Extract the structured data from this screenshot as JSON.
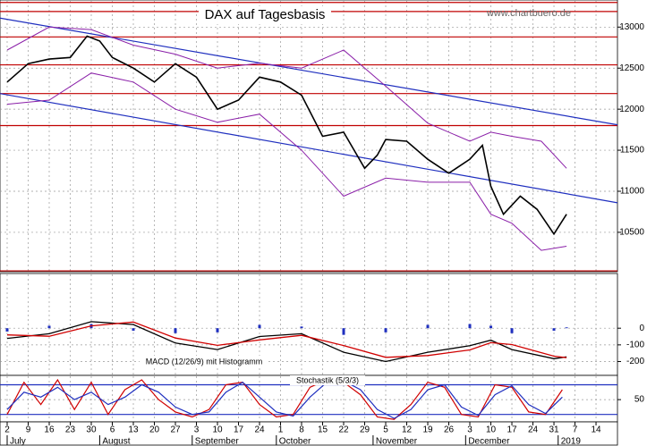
{
  "chart_data": [
    {
      "type": "line",
      "title": "DAX auf Tagesbasis",
      "source": "www.chartbuero.de",
      "ylim": [
        10020,
        13330
      ],
      "yticks": [
        10500,
        11000,
        11500,
        12000,
        12500,
        13000
      ],
      "xlim": [
        -1.7,
        145.1
      ],
      "grid": true,
      "hlines": [
        {
          "value": 13300,
          "color": "#c00000"
        },
        {
          "value": 13190,
          "color": "#c00000"
        },
        {
          "value": 12880,
          "color": "#c00000"
        },
        {
          "value": 12540,
          "color": "#c00000"
        },
        {
          "value": 12190,
          "color": "#c00000"
        },
        {
          "value": 11800,
          "color": "#c00000"
        },
        {
          "value": 10030,
          "color": "#c00000"
        }
      ],
      "trendlines": [
        {
          "color": "#1f2fbf",
          "x": [
            -1.7,
            145.1
          ],
          "values": [
            13110,
            11810
          ]
        },
        {
          "color": "#1f2fbf",
          "x": [
            -1.7,
            145.1
          ],
          "values": [
            12190,
            10860
          ]
        }
      ],
      "series": [
        {
          "color": "#000000",
          "width": 1.6,
          "x": [
            0,
            5,
            10,
            15,
            19,
            22,
            25,
            30,
            35,
            40,
            45,
            50,
            55,
            60,
            65,
            70,
            75,
            80,
            85,
            88,
            90,
            95,
            100,
            105,
            110,
            113,
            115,
            118,
            122,
            126,
            130,
            133
          ],
          "values": [
            12330,
            12555,
            12610,
            12630,
            12890,
            12830,
            12630,
            12500,
            12330,
            12555,
            12390,
            12000,
            12110,
            12390,
            12330,
            12170,
            11670,
            11720,
            11280,
            11440,
            11630,
            11610,
            11390,
            11220,
            11390,
            11560,
            11060,
            10720,
            10940,
            10780,
            10480,
            10720
          ]
        },
        {
          "color": "#8a1fa8",
          "width": 1,
          "x": [
            0,
            10,
            20,
            30,
            40,
            50,
            60,
            70,
            80,
            90,
            100,
            110,
            115,
            120,
            127,
            133
          ],
          "values": [
            12720,
            13000,
            12970,
            12780,
            12670,
            12500,
            12560,
            12500,
            12720,
            12280,
            11830,
            11610,
            11720,
            11670,
            11610,
            11280
          ]
        },
        {
          "color": "#8a1fa8",
          "width": 1,
          "x": [
            0,
            10,
            20,
            30,
            40,
            50,
            60,
            70,
            80,
            90,
            100,
            110,
            115,
            120,
            127,
            133
          ],
          "values": [
            12060,
            12110,
            12440,
            12330,
            12000,
            11840,
            11940,
            11500,
            10940,
            11160,
            11110,
            11110,
            10720,
            10610,
            10280,
            10330
          ]
        }
      ]
    },
    {
      "type": "line",
      "title": "MACD (12/26/9) mit Histogramm",
      "ylim": [
        -283,
        328
      ],
      "yticks": [
        0,
        -100,
        -200
      ],
      "xlim": [
        -1.7,
        145.1
      ],
      "grid": true,
      "bars": {
        "color": "#1f2fbf",
        "x": [
          0,
          10,
          20,
          30,
          40,
          50,
          60,
          70,
          80,
          90,
          100,
          110,
          115,
          120,
          130,
          133
        ],
        "values": [
          -20,
          15,
          25,
          -15,
          -30,
          -25,
          20,
          10,
          -40,
          -25,
          20,
          25,
          15,
          -30,
          -15,
          5
        ]
      },
      "series": [
        {
          "color": "#000000",
          "width": 1.3,
          "x": [
            0,
            10,
            20,
            30,
            40,
            50,
            60,
            70,
            80,
            90,
            100,
            110,
            115,
            120,
            130,
            133
          ],
          "values": [
            -61,
            -33,
            39,
            22,
            -89,
            -128,
            -50,
            -33,
            -144,
            -200,
            -144,
            -105,
            -72,
            -128,
            -183,
            -172
          ]
        },
        {
          "color": "#d00000",
          "width": 1.3,
          "x": [
            0,
            10,
            20,
            30,
            40,
            50,
            60,
            70,
            80,
            90,
            100,
            110,
            115,
            120,
            130,
            133
          ],
          "values": [
            -40,
            -48,
            14,
            37,
            -59,
            -103,
            -70,
            -43,
            -104,
            -175,
            -164,
            -130,
            -87,
            -98,
            -168,
            -177
          ]
        }
      ]
    },
    {
      "type": "line",
      "title": "Stochastik (5/3/3)",
      "ylim": [
        5,
        99
      ],
      "yticks": [
        50
      ],
      "xlim": [
        -1.7,
        145.1
      ],
      "grid": true,
      "hlines": [
        {
          "value": 80,
          "color": "#1f2fbf"
        },
        {
          "value": 20,
          "color": "#1f2fbf"
        }
      ],
      "xticks": [
        {
          "value": 0,
          "label": "2"
        },
        {
          "value": 5,
          "label": "9"
        },
        {
          "value": 10,
          "label": "16"
        },
        {
          "value": 15,
          "label": "23"
        },
        {
          "value": 20,
          "label": "30"
        },
        {
          "value": 25,
          "label": "6"
        },
        {
          "value": 30,
          "label": "13"
        },
        {
          "value": 35,
          "label": "20"
        },
        {
          "value": 40,
          "label": "27"
        },
        {
          "value": 45,
          "label": "3"
        },
        {
          "value": 50,
          "label": "10"
        },
        {
          "value": 55,
          "label": "17"
        },
        {
          "value": 60,
          "label": "24"
        },
        {
          "value": 65,
          "label": "1"
        },
        {
          "value": 70,
          "label": "8"
        },
        {
          "value": 75,
          "label": "15"
        },
        {
          "value": 80,
          "label": "22"
        },
        {
          "value": 85,
          "label": "29"
        },
        {
          "value": 90,
          "label": "5"
        },
        {
          "value": 95,
          "label": "12"
        },
        {
          "value": 100,
          "label": "19"
        },
        {
          "value": 105,
          "label": "26"
        },
        {
          "value": 110,
          "label": "3"
        },
        {
          "value": 115,
          "label": "10"
        },
        {
          "value": 120,
          "label": "17"
        },
        {
          "value": 125,
          "label": "24"
        },
        {
          "value": 130,
          "label": "31"
        },
        {
          "value": 135,
          "label": "7"
        },
        {
          "value": 140,
          "label": "14"
        }
      ],
      "months": [
        {
          "value": 0,
          "label": "July"
        },
        {
          "value": 22,
          "label": "August"
        },
        {
          "value": 44,
          "label": "September"
        },
        {
          "value": 64,
          "label": "October"
        },
        {
          "value": 87,
          "label": "November"
        },
        {
          "value": 109,
          "label": "December"
        },
        {
          "value": 131,
          "label": "2019"
        }
      ],
      "series": [
        {
          "color": "#d00000",
          "width": 1.2,
          "x": [
            0,
            4,
            8,
            12,
            16,
            20,
            24,
            28,
            32,
            36,
            40,
            44,
            48,
            52,
            56,
            60,
            64,
            68,
            72,
            76,
            80,
            84,
            88,
            92,
            96,
            100,
            104,
            108,
            112,
            116,
            120,
            124,
            128,
            132
          ],
          "values": [
            20,
            85,
            40,
            90,
            30,
            85,
            20,
            70,
            90,
            50,
            25,
            15,
            30,
            80,
            85,
            40,
            15,
            20,
            75,
            90,
            85,
            60,
            15,
            10,
            40,
            85,
            75,
            20,
            15,
            80,
            75,
            25,
            20,
            70
          ]
        },
        {
          "color": "#1f2fbf",
          "width": 1.2,
          "x": [
            0,
            4,
            8,
            12,
            16,
            20,
            24,
            28,
            32,
            36,
            40,
            44,
            48,
            52,
            56,
            60,
            64,
            68,
            72,
            76,
            80,
            84,
            88,
            92,
            96,
            100,
            104,
            108,
            112,
            116,
            120,
            124,
            128,
            132
          ],
          "values": [
            30,
            65,
            55,
            75,
            50,
            65,
            40,
            55,
            80,
            65,
            35,
            20,
            25,
            65,
            85,
            55,
            25,
            17,
            55,
            85,
            88,
            70,
            30,
            12,
            30,
            70,
            80,
            35,
            18,
            60,
            78,
            40,
            22,
            55
          ]
        }
      ]
    }
  ]
}
